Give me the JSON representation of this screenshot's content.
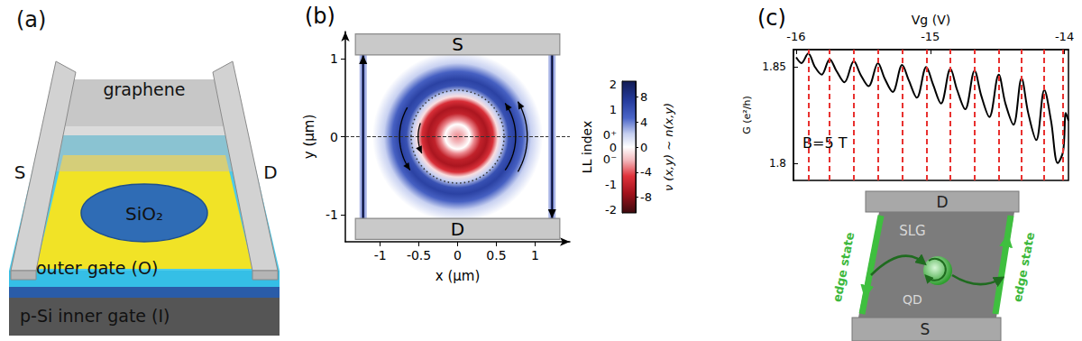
{
  "chart_data": [
    {
      "label": "(b)",
      "type": "heatmap",
      "xlabel": "x (μm)",
      "ylabel": "y (μm)",
      "xlim": [
        -1.45,
        1.45
      ],
      "ylim": [
        -1.35,
        1.35
      ],
      "xticks": [
        -1,
        -0.5,
        0,
        0.5,
        1
      ],
      "yticks": [
        -1,
        0,
        1
      ],
      "profile": {
        "r": [
          0,
          0.08,
          0.16,
          0.22,
          0.3,
          0.38,
          0.46,
          0.52,
          0.58,
          0.66,
          0.74,
          0.84,
          0.95,
          1.1
        ],
        "nu": [
          -3,
          -2,
          0,
          -3,
          -6,
          -7,
          -5,
          -1,
          2,
          6,
          7,
          5,
          2,
          0
        ]
      },
      "dotted_circle_radius": 0.6,
      "dashed_line_y": 0,
      "edge_states": [
        {
          "x": -1.22,
          "y": [
            -1.05,
            1.05
          ]
        },
        {
          "x": 1.22,
          "y": [
            -1.05,
            1.05
          ]
        }
      ],
      "contacts": [
        {
          "label": "S",
          "x": [
            -1.32,
            1.32
          ],
          "y": [
            1.05,
            1.32
          ]
        },
        {
          "label": "D",
          "x": [
            -1.32,
            1.32
          ],
          "y": [
            -1.32,
            -1.05
          ]
        }
      ],
      "colorbar": {
        "label": "ν (x,y) ~ n(x,y)",
        "lim": [
          -10.5,
          10.5
        ],
        "ticks": [
          -8,
          -4,
          0,
          4,
          8
        ],
        "index_label": "LL index",
        "index_ticks": [
          {
            "value": 10,
            "label": "2"
          },
          {
            "value": 6,
            "label": "1"
          },
          {
            "value": 2,
            "label": "0⁺"
          },
          0,
          {
            "value": -2,
            "label": "0⁻"
          },
          {
            "value": -6,
            "label": "-1"
          },
          {
            "value": -10,
            "label": "-2"
          }
        ]
      }
    },
    {
      "label": "(c)",
      "type": "line",
      "xlabel": "Vg (V)",
      "ylabel": "G (e²/h)",
      "annotation": "B=5 T",
      "color": "#000000",
      "xlim": [
        -16.02,
        -13.97
      ],
      "ylim": [
        1.791,
        1.859
      ],
      "xticks": [
        -16,
        -15,
        -14
      ],
      "yticks": [
        1.8,
        1.85
      ],
      "x": [
        -16.0,
        -15.96,
        -15.91,
        -15.86,
        -15.81,
        -15.75,
        -15.7,
        -15.64,
        -15.57,
        -15.52,
        -15.46,
        -15.39,
        -15.34,
        -15.28,
        -15.21,
        -15.16,
        -15.1,
        -15.03,
        -14.98,
        -14.92,
        -14.85,
        -14.8,
        -14.74,
        -14.67,
        -14.62,
        -14.56,
        -14.49,
        -14.44,
        -14.38,
        -14.32,
        -14.27,
        -14.21,
        -14.15,
        -14.1,
        -14.05,
        -14.01,
        -13.99,
        -13.97
      ],
      "values": [
        1.855,
        1.852,
        1.857,
        1.85,
        1.846,
        1.854,
        1.848,
        1.842,
        1.853,
        1.846,
        1.84,
        1.852,
        1.844,
        1.837,
        1.851,
        1.843,
        1.834,
        1.85,
        1.841,
        1.831,
        1.849,
        1.838,
        1.828,
        1.848,
        1.835,
        1.824,
        1.846,
        1.831,
        1.82,
        1.844,
        1.826,
        1.812,
        1.838,
        1.822,
        1.8,
        1.806,
        1.826,
        1.822
      ],
      "dashed_lines_x": [
        -15.91,
        -15.75,
        -15.57,
        -15.39,
        -15.21,
        -15.03,
        -14.85,
        -14.67,
        -14.49,
        -14.32,
        -14.15,
        -14.01
      ],
      "dashed_lines_color": "#e8312f"
    }
  ],
  "diagrams": {
    "a": {
      "label": "(a)",
      "graphene": "graphene",
      "source": "S",
      "drain": "D",
      "dielectric": "SiO₂",
      "outer_gate": "outer gate (O)",
      "inner_gate": "p-Si inner gate (I)"
    },
    "c": {
      "drain": "D",
      "source": "S",
      "sheet": "SLG",
      "edge_states": [
        "edge state",
        "edge state"
      ],
      "dot": "QD"
    }
  }
}
